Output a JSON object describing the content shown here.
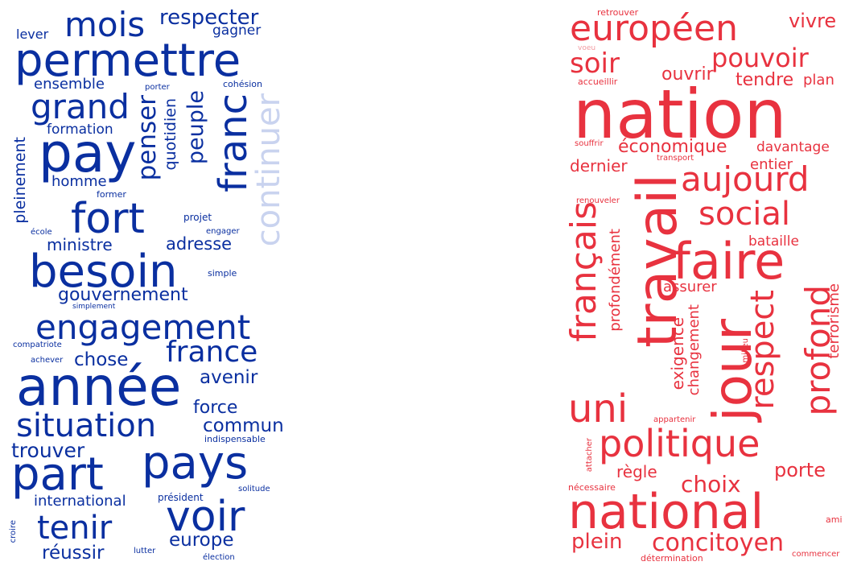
{
  "left_cloud": {
    "colors": {
      "primary": "#0a2fa0",
      "light": "#c9d3ef"
    },
    "words": [
      {
        "text": "mois"
      },
      {
        "text": "respecter"
      },
      {
        "text": "gagner"
      },
      {
        "text": "lever"
      },
      {
        "text": "permettre"
      },
      {
        "text": "ensemble"
      },
      {
        "text": "porter"
      },
      {
        "text": "cohésion"
      },
      {
        "text": "grand"
      },
      {
        "text": "penser"
      },
      {
        "text": "quotidien"
      },
      {
        "text": "peuple"
      },
      {
        "text": "franc"
      },
      {
        "text": "continuer"
      },
      {
        "text": "formation"
      },
      {
        "text": "pay"
      },
      {
        "text": "pleinement"
      },
      {
        "text": "homme"
      },
      {
        "text": "former"
      },
      {
        "text": "fort"
      },
      {
        "text": "projet"
      },
      {
        "text": "école"
      },
      {
        "text": "engager"
      },
      {
        "text": "ministre"
      },
      {
        "text": "adresse"
      },
      {
        "text": "besoin"
      },
      {
        "text": "simple"
      },
      {
        "text": "gouvernement"
      },
      {
        "text": "simplement"
      },
      {
        "text": "engagement"
      },
      {
        "text": "compatriote"
      },
      {
        "text": "france"
      },
      {
        "text": "chose"
      },
      {
        "text": "achever"
      },
      {
        "text": "avenir"
      },
      {
        "text": "année"
      },
      {
        "text": "force"
      },
      {
        "text": "situation"
      },
      {
        "text": "commun"
      },
      {
        "text": "indispensable"
      },
      {
        "text": "trouver"
      },
      {
        "text": "pays"
      },
      {
        "text": "part"
      },
      {
        "text": "solitude"
      },
      {
        "text": "international"
      },
      {
        "text": "président"
      },
      {
        "text": "voir"
      },
      {
        "text": "tenir"
      },
      {
        "text": "europe"
      },
      {
        "text": "croire"
      },
      {
        "text": "réussir"
      },
      {
        "text": "lutter"
      },
      {
        "text": "élection"
      }
    ]
  },
  "right_cloud": {
    "colors": {
      "primary": "#e8323f",
      "light": "#f29aa0"
    },
    "words": [
      {
        "text": "retrouver"
      },
      {
        "text": "européen"
      },
      {
        "text": "vivre"
      },
      {
        "text": "voeu"
      },
      {
        "text": "soir"
      },
      {
        "text": "pouvoir"
      },
      {
        "text": "accueillir"
      },
      {
        "text": "ouvrir"
      },
      {
        "text": "tendre"
      },
      {
        "text": "plan"
      },
      {
        "text": "nation"
      },
      {
        "text": "souffrir"
      },
      {
        "text": "économique"
      },
      {
        "text": "davantage"
      },
      {
        "text": "transport"
      },
      {
        "text": "dernier"
      },
      {
        "text": "entier"
      },
      {
        "text": "aujourd"
      },
      {
        "text": "travail"
      },
      {
        "text": "social"
      },
      {
        "text": "renouveler"
      },
      {
        "text": "français"
      },
      {
        "text": "bataille"
      },
      {
        "text": "faire"
      },
      {
        "text": "profondément"
      },
      {
        "text": "assurer"
      },
      {
        "text": "respect"
      },
      {
        "text": "profond"
      },
      {
        "text": "terrorisme"
      },
      {
        "text": "exigence"
      },
      {
        "text": "changement"
      },
      {
        "text": "milieu"
      },
      {
        "text": "jour"
      },
      {
        "text": "uni"
      },
      {
        "text": "appartenir"
      },
      {
        "text": "politique"
      },
      {
        "text": "attacher"
      },
      {
        "text": "règle"
      },
      {
        "text": "porte"
      },
      {
        "text": "choix"
      },
      {
        "text": "nécessaire"
      },
      {
        "text": "national"
      },
      {
        "text": "ami"
      },
      {
        "text": "plein"
      },
      {
        "text": "concitoyen"
      },
      {
        "text": "détermination"
      },
      {
        "text": "commencer"
      }
    ]
  }
}
